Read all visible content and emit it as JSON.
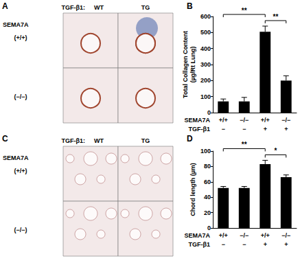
{
  "micrographs": [
    {
      "panel": "A",
      "column_header_label": "TGF-β1:",
      "columns": [
        "WT",
        "TG"
      ],
      "row_header": "SEMA7A",
      "rows": [
        "(+/+)",
        "(−/−)"
      ]
    },
    {
      "panel": "C",
      "column_header_label": "TGF-β1:",
      "columns": [
        "WT",
        "TG"
      ],
      "row_header": "SEMA7A",
      "rows": [
        "(+/+)",
        "(−/−)"
      ]
    }
  ],
  "chart_data": [
    {
      "title": "B",
      "type": "bar",
      "ylabel": "Total Collagen Content\n(µg/Rt Lung)",
      "categories_label": "SEMA7A",
      "categories": [
        "+/+",
        "−/−",
        "+/+",
        "−/−"
      ],
      "row2_label": "TGF-β1",
      "row2": [
        "−",
        "−",
        "+",
        "+"
      ],
      "values": [
        70,
        70,
        505,
        200
      ],
      "errors": [
        15,
        25,
        35,
        30
      ],
      "color": "#000000",
      "ylim": [
        0,
        600
      ],
      "yticks": [
        0,
        100,
        200,
        300,
        400,
        500,
        600
      ],
      "grid": false,
      "significance": [
        {
          "from": 0,
          "to": 2,
          "label": "**"
        },
        {
          "from": 2,
          "to": 3,
          "label": "**"
        }
      ]
    },
    {
      "title": "D",
      "type": "bar",
      "ylabel": "Chord length (µm)",
      "categories_label": "SEMA7A",
      "categories": [
        "+/+",
        "−/−",
        "+/+",
        "−/−"
      ],
      "row2_label": "TGF-β1",
      "row2": [
        "−",
        "−",
        "+",
        "+"
      ],
      "values": [
        52,
        52,
        83,
        66
      ],
      "errors": [
        2,
        2,
        5,
        3
      ],
      "color": "#000000",
      "ylim": [
        0,
        100
      ],
      "yticks": [
        0,
        20,
        40,
        60,
        80,
        100
      ],
      "grid": false,
      "significance": [
        {
          "from": 0,
          "to": 2,
          "label": "**"
        },
        {
          "from": 2,
          "to": 3,
          "label": "*"
        }
      ]
    }
  ]
}
